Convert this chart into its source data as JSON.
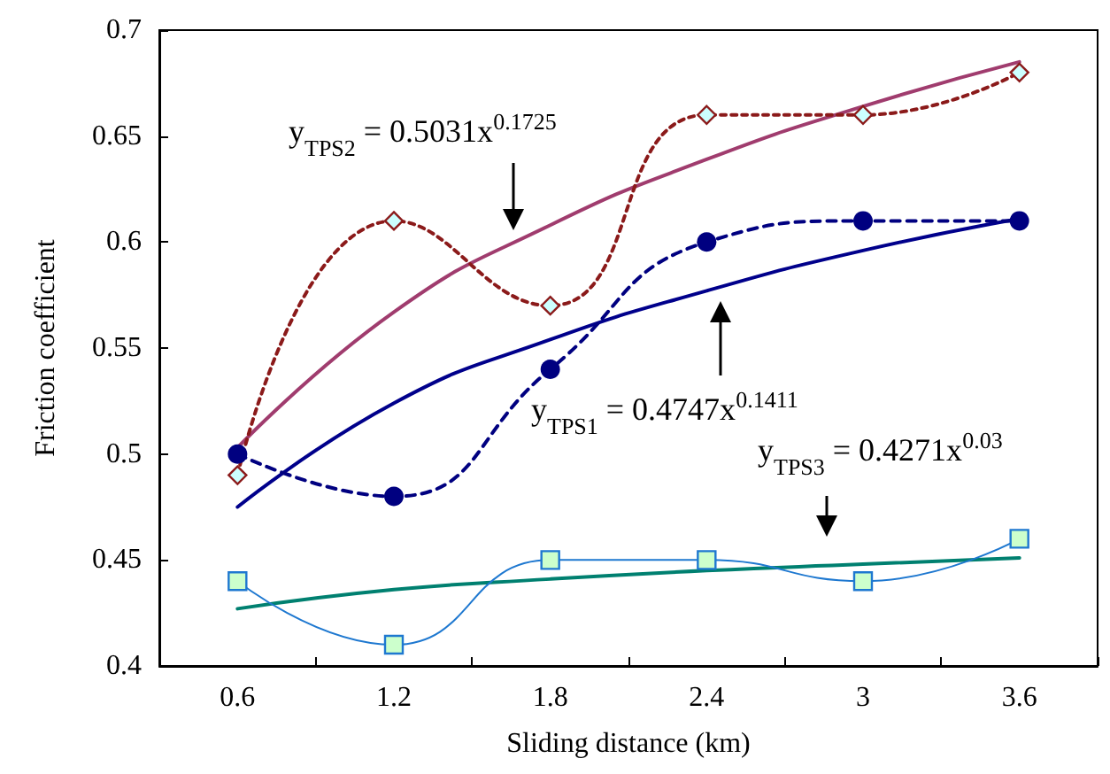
{
  "chart_data": {
    "type": "line",
    "xlabel": "Sliding distance (km)",
    "ylabel": "Friction coefficient",
    "categories": [
      "0.6",
      "1.2",
      "1.8",
      "2.4",
      "3",
      "3.6"
    ],
    "ylim": [
      0.4,
      0.7
    ],
    "yticks": [
      0.4,
      0.45,
      0.5,
      0.55,
      0.6,
      0.65,
      0.7
    ],
    "grid": false,
    "series": [
      {
        "color": "#8b1a1a",
        "values": [
          0.49,
          0.61,
          0.57,
          0.66,
          0.66,
          0.68
        ],
        "marker": "diamond",
        "line_style": "dotted"
      },
      {
        "color": "#000080",
        "values": [
          0.5,
          0.48,
          0.54,
          0.6,
          0.61,
          0.61
        ],
        "marker": "circle",
        "line_style": "dashed"
      },
      {
        "color": "#1e78d0",
        "values": [
          0.44,
          0.41,
          0.45,
          0.45,
          0.44,
          0.46
        ],
        "marker": "square",
        "line_style": "solid"
      },
      {
        "color": "#a03c6e",
        "values": [
          0.503,
          0.567,
          0.608,
          0.639,
          0.664,
          0.685
        ],
        "marker": "none",
        "line_style": "solid"
      },
      {
        "color": "#00008b",
        "values": [
          0.475,
          0.524,
          0.554,
          0.577,
          0.596,
          0.611
        ],
        "marker": "none",
        "line_style": "solid"
      },
      {
        "color": "#008070",
        "values": [
          0.427,
          0.436,
          0.441,
          0.445,
          0.448,
          0.451
        ],
        "marker": "none",
        "line_style": "solid"
      }
    ],
    "annotations": [
      "y$_{TPS2}$ = 0.5031x$^{0.1725}$",
      "y$_{TPS1}$ = 0.4747x$^{0.1411}$",
      "y$_{TPS3}$ = 0.4271x$^{0.03}$"
    ]
  }
}
